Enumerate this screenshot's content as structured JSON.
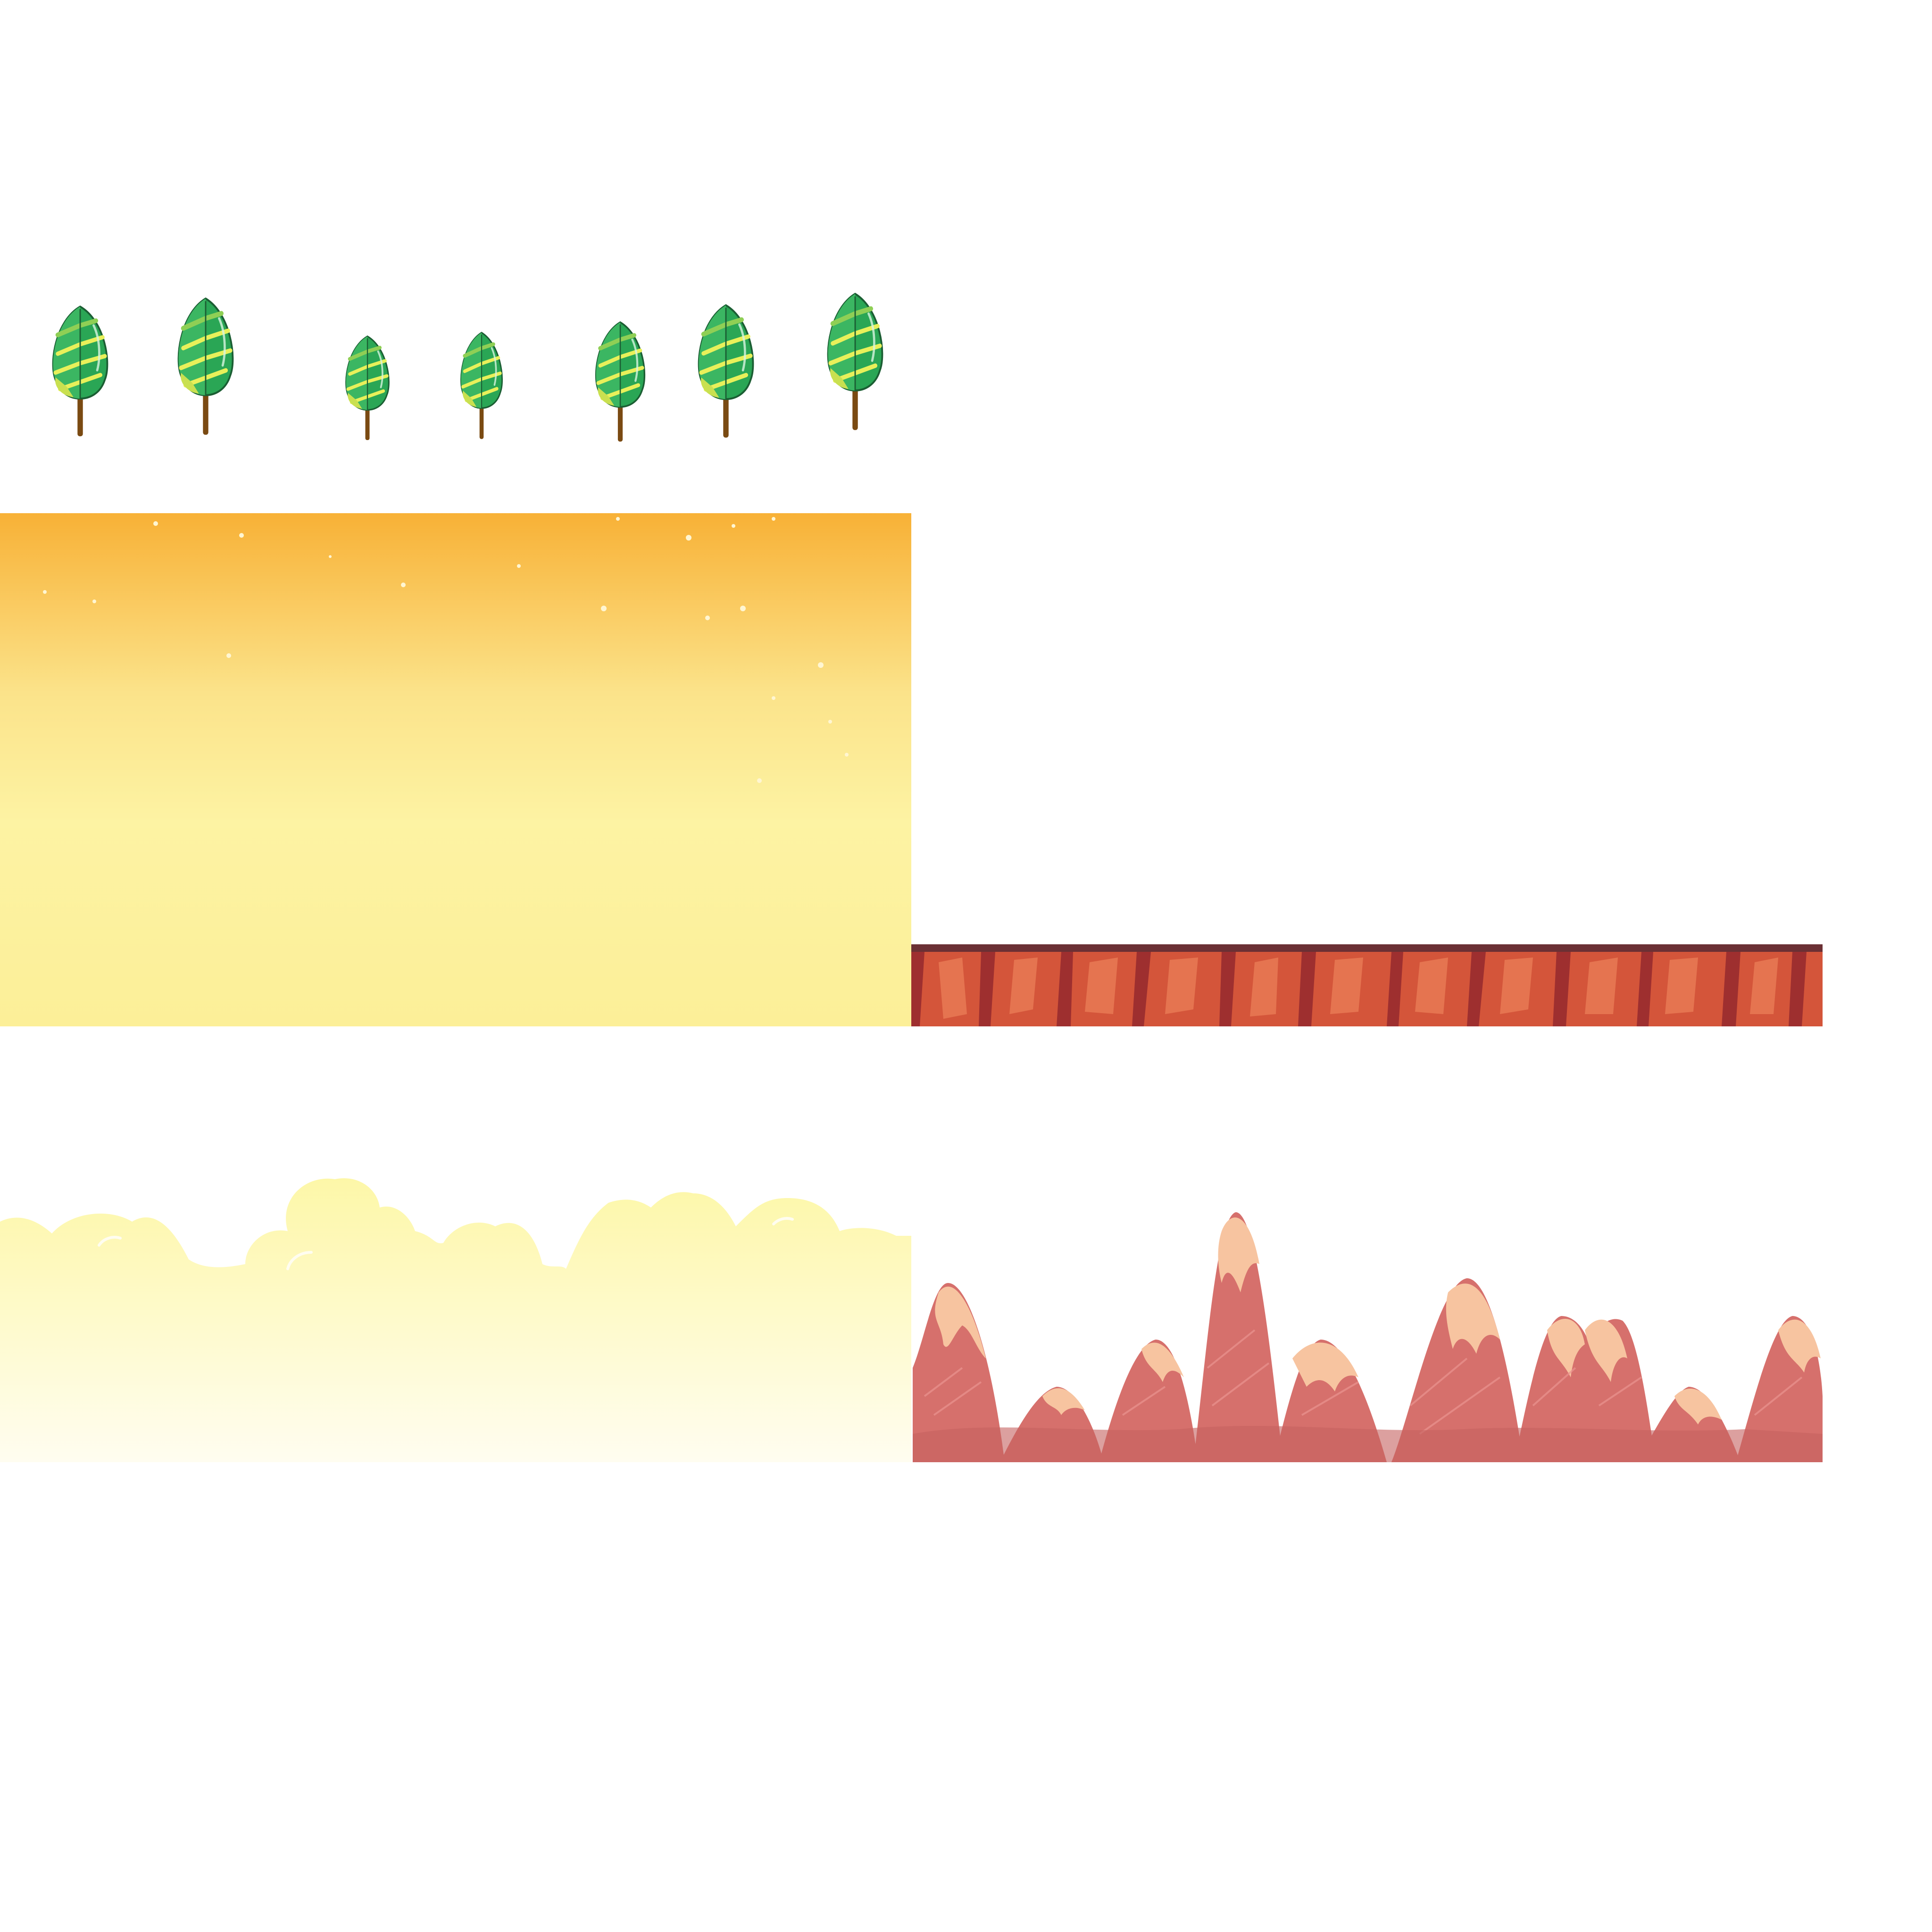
{
  "sprite_sheet": {
    "background_color": "#ffffff",
    "assets": {
      "trees": {
        "count": 7,
        "icon": "tree-icon",
        "colors": {
          "leaf": "#2aa655",
          "leaf_light": "#8fcf55",
          "highlight": "#e8f05a",
          "trunk": "#7a4a12",
          "outline": "#1b5e33"
        }
      },
      "sky_gradient": {
        "icon": "sky-panel",
        "colors": {
          "top": "#f8b136",
          "middle": "#fbe38a",
          "bottom": "#fdf3a3",
          "stars": "#fff6d2"
        }
      },
      "ground_strip": {
        "icon": "rock-ground-strip",
        "colors": {
          "top_edge": "#6b3034",
          "base": "#d4553a",
          "light": "#e87a55",
          "dark": "#9e2f2f"
        }
      },
      "cloud_band": {
        "icon": "cloud-band",
        "colors": {
          "top": "#fdf7a8",
          "bottom": "#fffdf0",
          "outline": "#fff9c4"
        }
      },
      "mountains": {
        "icon": "mountain-range",
        "colors": {
          "body": "#d6706c",
          "shadow": "#c5615f",
          "peak": "#f7c4a0",
          "hatch": "#e99490"
        }
      }
    }
  }
}
